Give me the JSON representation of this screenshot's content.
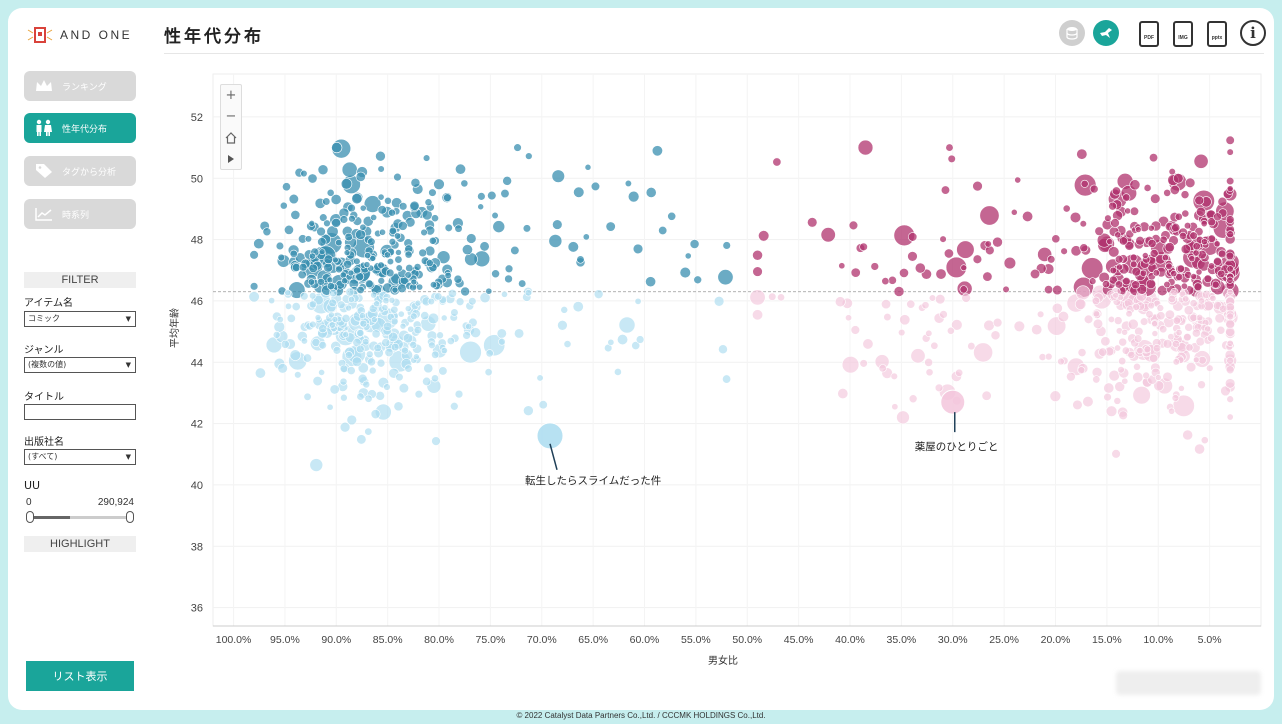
{
  "app": {
    "brand": "AND ONE",
    "page_title": "性年代分布",
    "copyright": "© 2022 Catalyst Data Partners Co.,Ltd. / CCCMK HOLDINGS Co.,Ltd."
  },
  "nav": [
    {
      "label": "ランキング",
      "icon": "crown-icon",
      "active": false
    },
    {
      "label": "性年代分布",
      "icon": "people-icon",
      "active": true
    },
    {
      "label": "タグから分析",
      "icon": "tag-icon",
      "active": false
    },
    {
      "label": "時系列",
      "icon": "line-chart-icon",
      "active": false
    }
  ],
  "filter": {
    "header": "FILTER",
    "item_label": "アイテム名",
    "item_value": "コミック",
    "genre_label": "ジャンル",
    "genre_value": "(複数の値)",
    "title_label": "タイトル",
    "title_value": "",
    "publisher_label": "出版社名",
    "publisher_value": "(すべて)",
    "uu_label": "UU",
    "uu_min": "0",
    "uu_max": "290,924",
    "highlight": "HIGHLIGHT"
  },
  "list_button": "リスト表示",
  "toolbar": {
    "pdf": "PDF",
    "img": "IMG",
    "pptx": "pptx",
    "info": "i"
  },
  "colors": {
    "accent": "#1aa59a",
    "male": "#3a8fb0",
    "male_light": "#aadcf0",
    "female": "#b0336e",
    "female_light": "#f3c6dc"
  },
  "chart_data": {
    "type": "scatter",
    "xlabel": "男女比",
    "ylabel": "平均年齢",
    "x_ticks": [
      "100.0%",
      "95.0%",
      "90.0%",
      "85.0%",
      "80.0%",
      "75.0%",
      "70.0%",
      "65.0%",
      "60.0%",
      "55.0%",
      "50.0%",
      "45.0%",
      "40.0%",
      "35.0%",
      "30.0%",
      "25.0%",
      "20.0%",
      "15.0%",
      "10.0%",
      "5.0%"
    ],
    "x_tick_values": [
      100,
      95,
      90,
      85,
      80,
      75,
      70,
      65,
      60,
      55,
      50,
      45,
      40,
      35,
      30,
      25,
      20,
      15,
      10,
      5
    ],
    "y_ticks": [
      36,
      38,
      40,
      42,
      44,
      46,
      48,
      50,
      52
    ],
    "xlim": [
      102,
      0
    ],
    "ylim": [
      35.4,
      53.4
    ],
    "reference_line_y": 46.3,
    "annotations": [
      {
        "label": "転生したらスライムだった件",
        "x": 69.2,
        "y": 41.6
      },
      {
        "label": "薬屋のひとりごと",
        "x": 30.0,
        "y": 42.7
      }
    ]
  }
}
